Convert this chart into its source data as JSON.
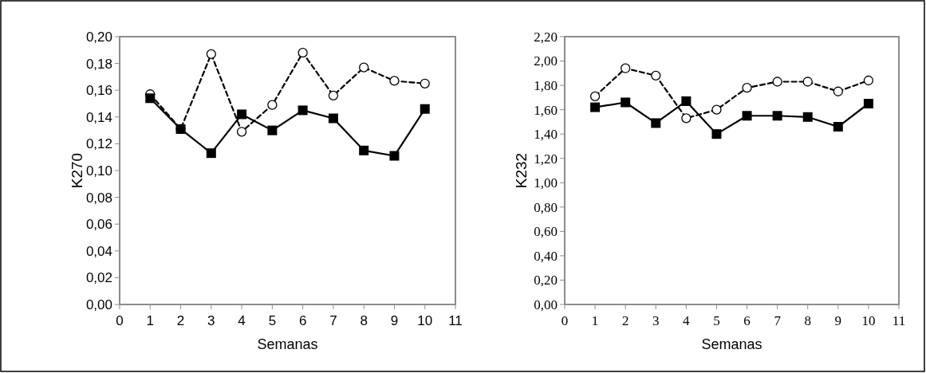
{
  "chart_data": [
    {
      "type": "line",
      "xlabel": "Semanas",
      "ylabel": "K270",
      "xlim": [
        0,
        11
      ],
      "xticks": [
        {
          "value": 0,
          "label": "0"
        },
        1,
        2,
        3,
        4,
        5,
        6,
        7,
        8,
        9,
        10,
        11
      ],
      "ylim": [
        0,
        0.2
      ],
      "yticks": [
        {
          "value": 0,
          "label": "0,00"
        },
        {
          "value": 0.02,
          "label": "0,02"
        },
        {
          "value": 0.04,
          "label": "0,04"
        },
        {
          "value": 0.06,
          "label": "0,06"
        },
        {
          "value": 0.08,
          "label": "0,08"
        },
        {
          "value": 0.1,
          "label": "0,10"
        },
        {
          "value": 0.12,
          "label": "0,12"
        },
        {
          "value": 0.14,
          "label": "0,14"
        },
        {
          "value": 0.16,
          "label": "0,16"
        },
        {
          "value": 0.18,
          "label": "0,18"
        },
        {
          "value": 0.2,
          "label": "0,20"
        }
      ],
      "x": [
        1,
        2,
        3,
        4,
        5,
        6,
        7,
        8,
        9,
        10
      ],
      "grid": false,
      "series": [
        {
          "color": "#000000",
          "marker": "circle",
          "line_style": "dashed",
          "values": [
            0.157,
            0.131,
            0.187,
            0.129,
            0.149,
            0.188,
            0.156,
            0.177,
            0.167,
            0.165
          ]
        },
        {
          "color": "#000000",
          "marker": "square",
          "line_style": "solid",
          "values": [
            0.154,
            0.131,
            0.113,
            0.142,
            0.13,
            0.145,
            0.139,
            0.115,
            0.111,
            0.146
          ]
        }
      ]
    },
    {
      "type": "line",
      "xlabel": "Semanas",
      "ylabel": "K232",
      "xlim": [
        0,
        11
      ],
      "xticks": [
        {
          "value": 0,
          "label": "0"
        },
        1,
        2,
        3,
        4,
        5,
        6,
        7,
        8,
        9,
        10,
        11
      ],
      "ylim": [
        0,
        2.2
      ],
      "yticks": [
        {
          "value": 0,
          "label": "0,00"
        },
        {
          "value": 0.2,
          "label": "0,20"
        },
        {
          "value": 0.4,
          "label": "0,40"
        },
        {
          "value": 0.6,
          "label": "0,60"
        },
        {
          "value": 0.8,
          "label": "0,80"
        },
        {
          "value": 1.0,
          "label": "1,00"
        },
        {
          "value": 1.2,
          "label": "1,20"
        },
        {
          "value": 1.4,
          "label": "1,40"
        },
        {
          "value": 1.6,
          "label": "1,60"
        },
        {
          "value": 1.8,
          "label": "1,80"
        },
        {
          "value": 2.0,
          "label": "2,00"
        },
        {
          "value": 2.2,
          "label": "2,20"
        }
      ],
      "x": [
        1,
        2,
        3,
        4,
        5,
        6,
        7,
        8,
        9,
        10
      ],
      "grid": false,
      "series": [
        {
          "color": "#000000",
          "marker": "circle",
          "line_style": "dashed",
          "values": [
            1.71,
            1.94,
            1.88,
            1.53,
            1.6,
            1.78,
            1.83,
            1.83,
            1.75,
            1.84
          ]
        },
        {
          "color": "#000000",
          "marker": "square",
          "line_style": "solid",
          "values": [
            1.62,
            1.66,
            1.49,
            1.67,
            1.4,
            1.55,
            1.55,
            1.54,
            1.46,
            1.65
          ]
        }
      ]
    }
  ]
}
